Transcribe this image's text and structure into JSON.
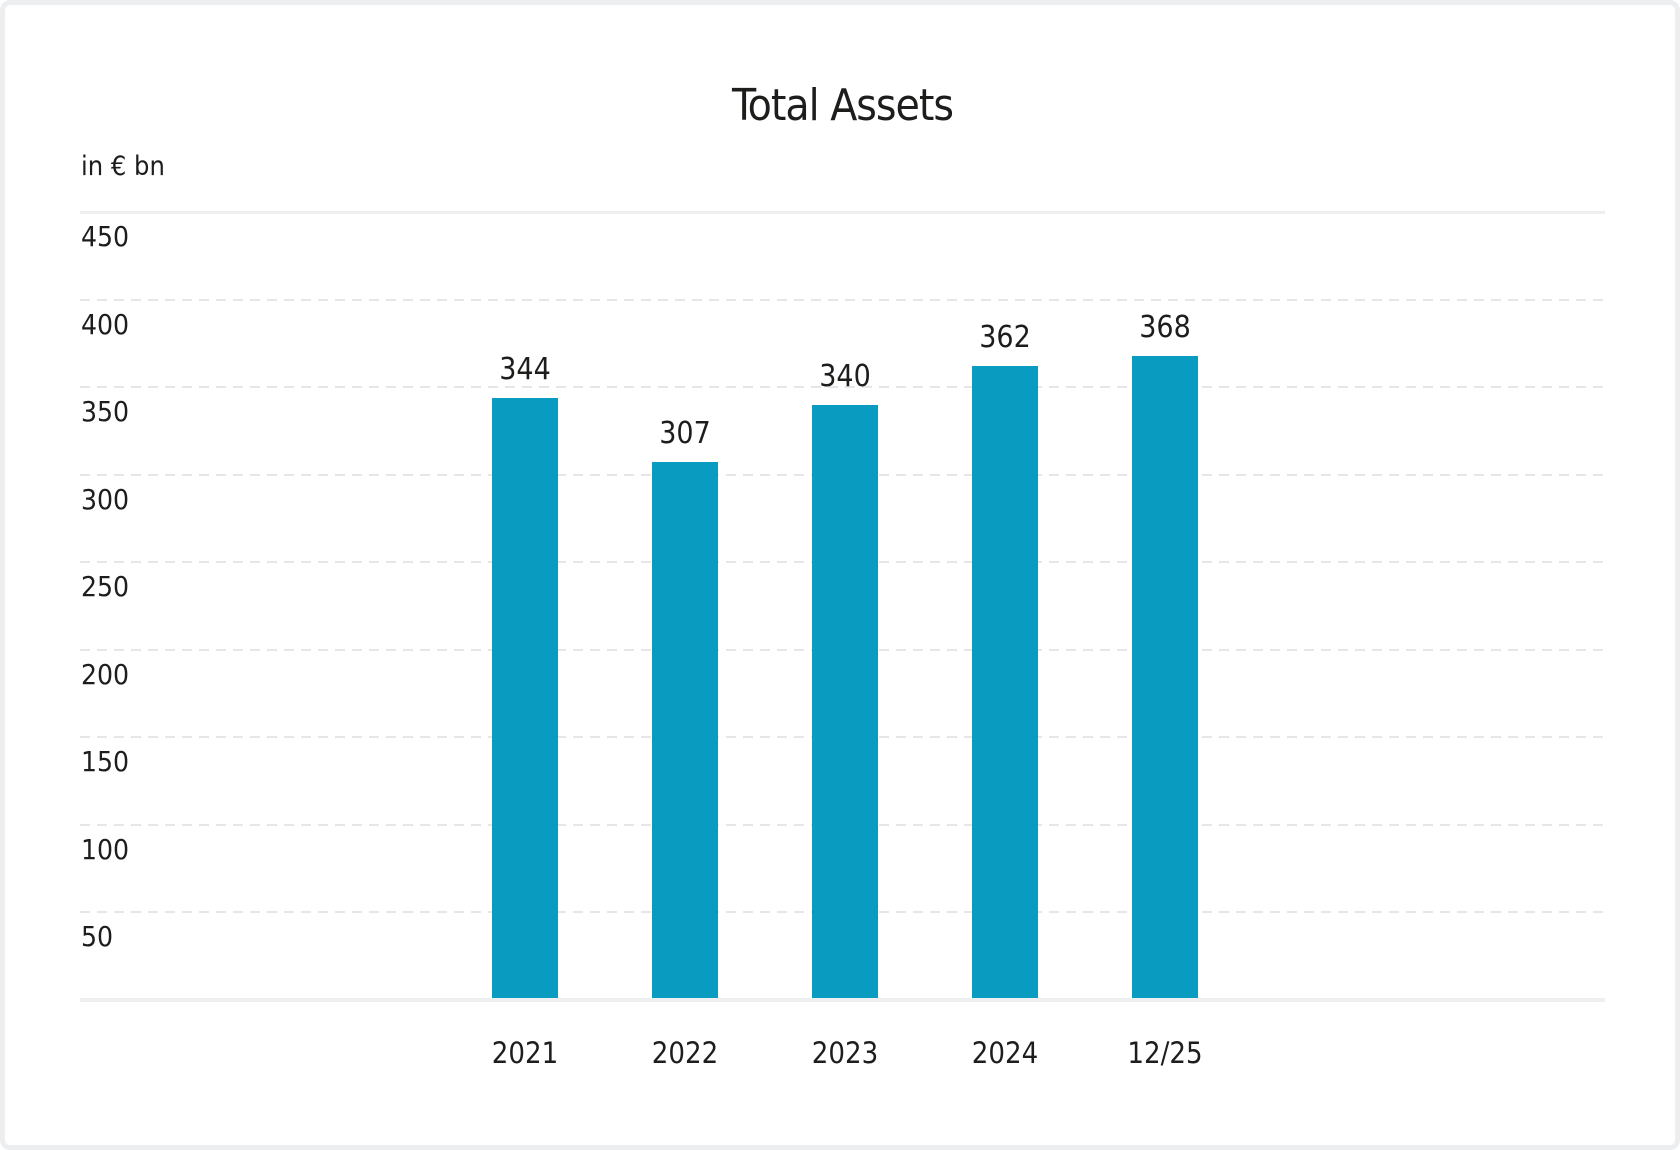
{
  "page": {
    "background_color": "#ffffff",
    "frame_color": "#eceef0",
    "text_color": "#1d1d1b"
  },
  "chart_data": {
    "type": "bar",
    "title": "Total Assets",
    "unit_label": "in € bn",
    "categories": [
      "2021",
      "2022",
      "2023",
      "2024",
      "12/25"
    ],
    "values": [
      344,
      307,
      340,
      362,
      368
    ],
    "bar_color": "#0a9bc1",
    "ylim": [
      0,
      450
    ],
    "yticks": [
      450,
      400,
      350,
      300,
      250,
      200,
      150,
      100,
      50
    ],
    "grid": "horizontal dashed, top gridline solid, baseline solid",
    "legend": "none",
    "xlabel": "",
    "ylabel": ""
  }
}
